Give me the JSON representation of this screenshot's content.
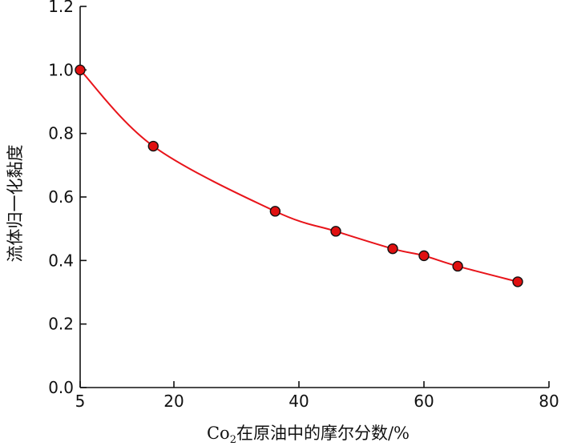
{
  "chart_data": {
    "type": "line",
    "xlabel_main": "Co",
    "xlabel_sub": "2",
    "xlabel_rest": "在原油中的摩尔分数/%",
    "ylabel": "流体归一化黏度",
    "xlim": [
      5,
      80
    ],
    "ylim": [
      0.0,
      1.2
    ],
    "xticks": [
      5,
      20,
      40,
      60,
      80
    ],
    "xtick_labels": [
      "5",
      "20",
      "40",
      "60",
      "80"
    ],
    "yticks": [
      0.0,
      0.2,
      0.4,
      0.6,
      0.8,
      1.0,
      1.2
    ],
    "ytick_labels": [
      "0.0",
      "0.2",
      "0.4",
      "0.6",
      "0.8",
      "1.0",
      "1.2"
    ],
    "series": [
      {
        "x": [
          5,
          16.7,
          36.2,
          45.9,
          55,
          60,
          65.4,
          75
        ],
        "y": [
          1.0,
          0.76,
          0.555,
          0.492,
          0.437,
          0.415,
          0.382,
          0.333
        ]
      }
    ],
    "grid": false,
    "colors": {
      "line": "#e8141a",
      "marker": "#e01010",
      "marker_edge": "#111111"
    }
  }
}
